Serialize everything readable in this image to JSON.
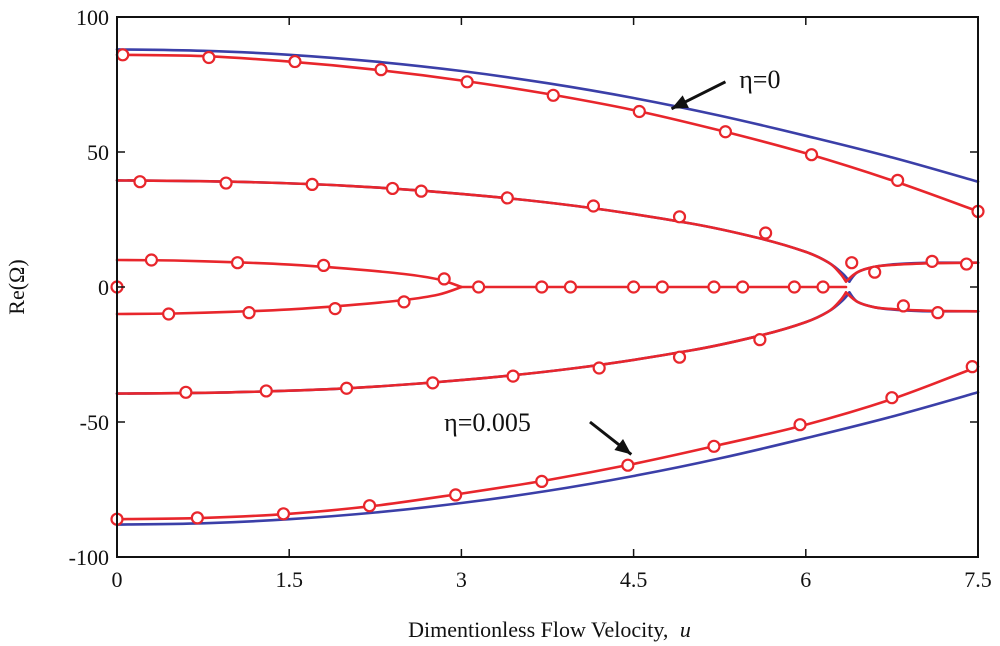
{
  "chart_data": {
    "type": "line",
    "title": "",
    "xlabel": "Dimentionless Flow Velocity,",
    "xlabel_var": "u",
    "ylabel": "Re(Ω)",
    "xlim": [
      0,
      7.5
    ],
    "ylim": [
      -100,
      100
    ],
    "xticks": [
      0,
      1.5,
      3,
      4.5,
      6,
      7.5
    ],
    "xtick_labels": [
      "0",
      "1.5",
      "3",
      "4.5",
      "6",
      "7.5"
    ],
    "yticks": [
      -100,
      -50,
      0,
      50,
      100
    ],
    "ytick_labels": [
      "-100",
      "-50",
      "0",
      "50",
      "100"
    ],
    "grid": false,
    "colors": {
      "eta0": "#3b3fa8",
      "eta005": "#e8262c",
      "frame": "#111111"
    },
    "annotations": [
      {
        "text": "η=0",
        "arrow_from": [
          5.3,
          76
        ],
        "arrow_to": [
          4.83,
          66
        ],
        "text_at": [
          5.42,
          77
        ]
      },
      {
        "text": "η=0.005",
        "arrow_from": [
          4.12,
          -50
        ],
        "arrow_to": [
          4.48,
          -62
        ],
        "text_at": [
          2.85,
          -50
        ]
      }
    ],
    "series": [
      {
        "name": "η=0",
        "style": "line",
        "group": "eta0",
        "branches": [
          {
            "x": [
              0,
              0.75,
              1.5,
              2.25,
              3,
              3.75,
              4.5,
              5.25,
              6,
              6.75,
              7.5
            ],
            "y": [
              88,
              87.5,
              86,
              83.5,
              80,
              75.5,
              70,
              63.5,
              56,
              48,
              39
            ]
          },
          {
            "x": [
              0,
              0.75,
              1.5,
              2.25,
              3,
              3.75,
              4.5,
              5.25,
              6,
              6.75,
              7.5
            ],
            "y": [
              -88,
              -87.5,
              -86,
              -83.5,
              -80,
              -75.5,
              -70,
              -63.5,
              -56,
              -48,
              -39
            ]
          },
          {
            "x": [
              0,
              1,
              2,
              3,
              4,
              5,
              5.6,
              6,
              6.2,
              6.32,
              6.38
            ],
            "y": [
              39.5,
              39,
              37.5,
              34.5,
              30,
              23.5,
              18,
              13,
              9,
              5,
              2
            ]
          },
          {
            "x": [
              0,
              1,
              2,
              3,
              4,
              5,
              5.6,
              6,
              6.2,
              6.32,
              6.38
            ],
            "y": [
              -39.5,
              -39,
              -37.5,
              -34.5,
              -30,
              -23.5,
              -18,
              -13,
              -9,
              -5,
              -2
            ]
          },
          {
            "x": [
              6.38,
              6.45,
              6.6,
              6.8,
              7.1,
              7.5
            ],
            "y": [
              2,
              5.5,
              7.5,
              8.5,
              9,
              9
            ]
          },
          {
            "x": [
              6.38,
              6.45,
              6.6,
              6.8,
              7.1,
              7.5
            ],
            "y": [
              -2,
              -5.5,
              -7.5,
              -8.5,
              -9,
              -9
            ]
          }
        ]
      },
      {
        "name": "η=0.005",
        "style": "line+marker",
        "group": "eta005",
        "branches": [
          {
            "x": [
              0,
              0.75,
              1.5,
              2.25,
              3,
              3.75,
              4.5,
              5.25,
              6,
              6.75,
              7.5
            ],
            "y": [
              86,
              85.5,
              83.5,
              80.5,
              76.5,
              71.5,
              65.5,
              58,
              49.5,
              39.5,
              28
            ]
          },
          {
            "x": [
              0,
              0.75,
              1.5,
              2.25,
              3,
              3.75,
              4.5,
              5.25,
              6,
              6.75,
              7.5
            ],
            "y": [
              -86,
              -85.5,
              -84,
              -81,
              -76.5,
              -71.5,
              -65.5,
              -58.5,
              -51,
              -41.5,
              -29.5
            ]
          },
          {
            "x": [
              0,
              1,
              2,
              3,
              4,
              5,
              5.6,
              6,
              6.2,
              6.3,
              6.35
            ],
            "y": [
              39.5,
              39,
              37.5,
              34.5,
              30,
              23.5,
              18,
              13,
              9,
              5,
              2
            ]
          },
          {
            "x": [
              0,
              1,
              2,
              3,
              4,
              5,
              5.6,
              6,
              6.2,
              6.3,
              6.35
            ],
            "y": [
              -39.5,
              -39,
              -37.5,
              -34.5,
              -30,
              -23.5,
              -18,
              -13,
              -9,
              -5,
              -2
            ]
          },
          {
            "x": [
              0,
              0.5,
              1,
              1.5,
              2,
              2.5,
              2.8,
              3
            ],
            "y": [
              10,
              9.8,
              9.2,
              8.3,
              6.8,
              4.8,
              2.8,
              0
            ]
          },
          {
            "x": [
              0,
              0.5,
              1,
              1.5,
              2,
              2.5,
              2.8,
              3
            ],
            "y": [
              -10,
              -9.8,
              -9.2,
              -8.3,
              -6.8,
              -4.8,
              -2.8,
              0
            ]
          },
          {
            "x": [
              3,
              6.35
            ],
            "y": [
              0,
              0
            ]
          },
          {
            "x": [
              6.35,
              6.45,
              6.6,
              6.8,
              7.1,
              7.5
            ],
            "y": [
              2,
              5.5,
              7.5,
              8.3,
              8.8,
              9
            ]
          },
          {
            "x": [
              6.35,
              6.45,
              6.6,
              6.8,
              7.1,
              7.5
            ],
            "y": [
              -2,
              -5.5,
              -7.5,
              -8.3,
              -8.8,
              -9
            ]
          }
        ],
        "markers": {
          "x": [
            0.05,
            0.8,
            1.55,
            2.3,
            3.05,
            3.8,
            4.55,
            5.3,
            6.05,
            6.8,
            7.5,
            0.2,
            0.95,
            1.7,
            2.4,
            2.65,
            3.4,
            4.15,
            4.9,
            5.65,
            6.4,
            0.3,
            1.05,
            1.8,
            2.85,
            6.6,
            0,
            3.15,
            3.7,
            3.95,
            4.5,
            4.75,
            5.2,
            5.45,
            5.9,
            6.15,
            7.1,
            7.4,
            0.45,
            1.15,
            1.9,
            2.5,
            6.85,
            7.15,
            0.6,
            1.3,
            2.0,
            2.75,
            3.45,
            4.2,
            4.9,
            5.6,
            0,
            0.7,
            1.45,
            2.2,
            2.95,
            3.7,
            4.45,
            5.2,
            5.95,
            6.75,
            7.45
          ],
          "y": [
            86,
            85,
            83.5,
            80.5,
            76,
            71,
            65,
            57.5,
            49,
            39.5,
            28,
            39,
            38.5,
            38,
            36.5,
            35.5,
            33,
            30,
            26,
            20,
            9,
            10,
            9,
            8,
            3,
            5.5,
            0,
            0,
            0,
            0,
            0,
            0,
            0,
            0,
            0,
            0,
            9.5,
            8.5,
            -10,
            -9.5,
            -8,
            -5.5,
            -7,
            -9.5,
            -39,
            -38.5,
            -37.5,
            -35.5,
            -33,
            -30,
            -26,
            -19.5,
            -86,
            -85.5,
            -84,
            -81,
            -77,
            -72,
            -66,
            -59,
            -51,
            -41,
            -29.5
          ]
        }
      }
    ]
  }
}
